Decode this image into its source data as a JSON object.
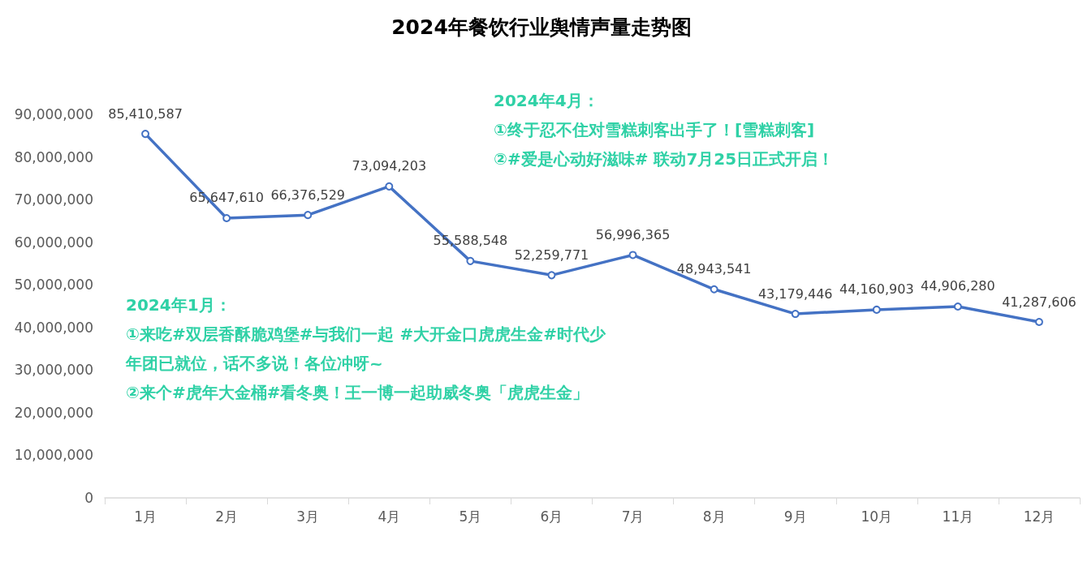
{
  "chart_data": {
    "type": "line",
    "title": "2024年餐饮行业舆情声量走势图",
    "categories": [
      "1月",
      "2月",
      "3月",
      "4月",
      "5月",
      "6月",
      "7月",
      "8月",
      "9月",
      "10月",
      "11月",
      "12月"
    ],
    "series": [
      {
        "color": "#4472c4",
        "values": [
          85410587,
          65647610,
          66376529,
          73094203,
          55588548,
          52259771,
          56996365,
          48943541,
          43179446,
          44160903,
          44906280,
          41287606
        ],
        "value_labels": [
          "85,410,587",
          "65,647,610",
          "66,376,529",
          "73,094,203",
          "55,588,548",
          "52,259,771",
          "56,996,365",
          "48,943,541",
          "43,179,446",
          "44,160,903",
          "44,906,280",
          "41,287,606"
        ]
      }
    ],
    "ylim": [
      0,
      90000000
    ],
    "yticks": [
      0,
      {
        "value": 10000000,
        "label": "10,000,000"
      },
      {
        "value": 20000000,
        "label": "20,000,000"
      },
      {
        "value": 30000000,
        "label": "30,000,000"
      },
      {
        "value": 40000000,
        "label": "40,000,000"
      },
      {
        "value": 50000000,
        "label": "50,000,000"
      },
      {
        "value": 60000000,
        "label": "60,000,000"
      },
      {
        "value": 70000000,
        "label": "70,000,000"
      },
      {
        "value": 80000000,
        "label": "80,000,000"
      },
      {
        "value": 90000000,
        "label": "90,000,000"
      }
    ],
    "grid": false,
    "marker": "circle",
    "line_style": "solid",
    "annotations": [
      "2024年4月：",
      "①终于忍不住对雪糕刺客出手了！[雪糕刺客]",
      "②#爱是心动好滋味# 联动7月25日正式开启！",
      "2024年1月：",
      "①来吃#双层香酥脆鸡堡#与我们一起 #大开金口虎虎生金#时代少年团已就位，话不多说！各位冲呀~",
      "②来个#虎年大金桶#看冬奥！王一博一起助威冬奥「虎虎生金」"
    ]
  }
}
